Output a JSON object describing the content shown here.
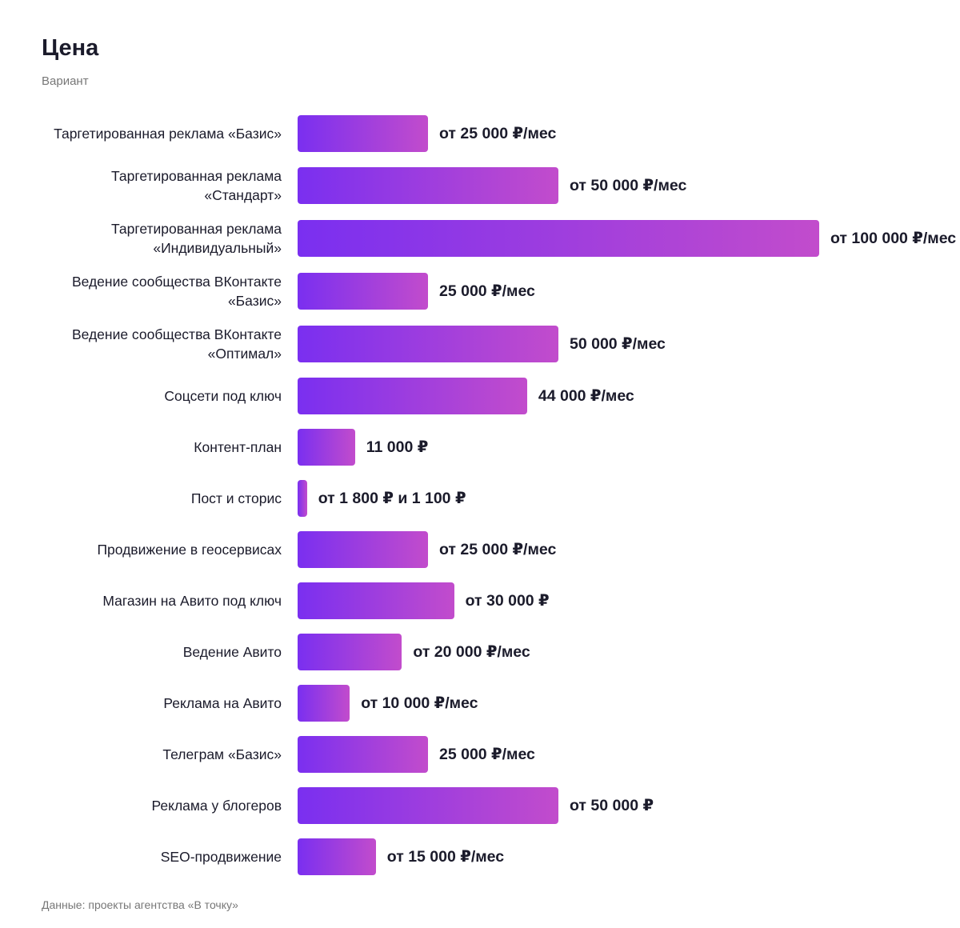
{
  "chart_data": {
    "type": "bar",
    "orientation": "horizontal",
    "title": "Цена",
    "subtitle": "Вариант",
    "source": "Данные: проекты агентства «В точку»",
    "categories": [
      "Таргетированная реклама «Базис»",
      "Таргетированная реклама «Стандарт»",
      "Таргетированная реклама «Индивидуальный»",
      "Ведение сообщества ВКонтакте «Базис»",
      "Ведение сообщества ВКонтакте «Оптимал»",
      "Соцсети под ключ",
      "Контент-план",
      "Пост и сторис",
      "Продвижение в геосервисах",
      "Магазин на Авито под ключ",
      "Ведение Авито",
      "Реклама на Авито",
      "Телеграм «Базис»",
      "Реклама у блогеров",
      "SEO-продвижение"
    ],
    "values": [
      25000,
      50000,
      100000,
      25000,
      50000,
      44000,
      11000,
      1800,
      25000,
      30000,
      20000,
      10000,
      25000,
      50000,
      15000
    ],
    "value_labels": [
      "от 25 000 ₽/мес",
      "от 50 000 ₽/мес",
      "от 100 000 ₽/мес",
      "25 000 ₽/мес",
      "50 000 ₽/мес",
      "44 000 ₽/мес",
      "11 000 ₽",
      "от 1 800 ₽ и 1 100 ₽",
      "от 25 000 ₽/мес",
      "от 30 000 ₽",
      "от 20 000 ₽/мес",
      "от 10 000 ₽/мес",
      "25 000 ₽/мес",
      "от 50 000 ₽",
      "от 15 000 ₽/мес"
    ],
    "colors": [
      "#7a2ff0",
      "#c24ccc"
    ]
  }
}
